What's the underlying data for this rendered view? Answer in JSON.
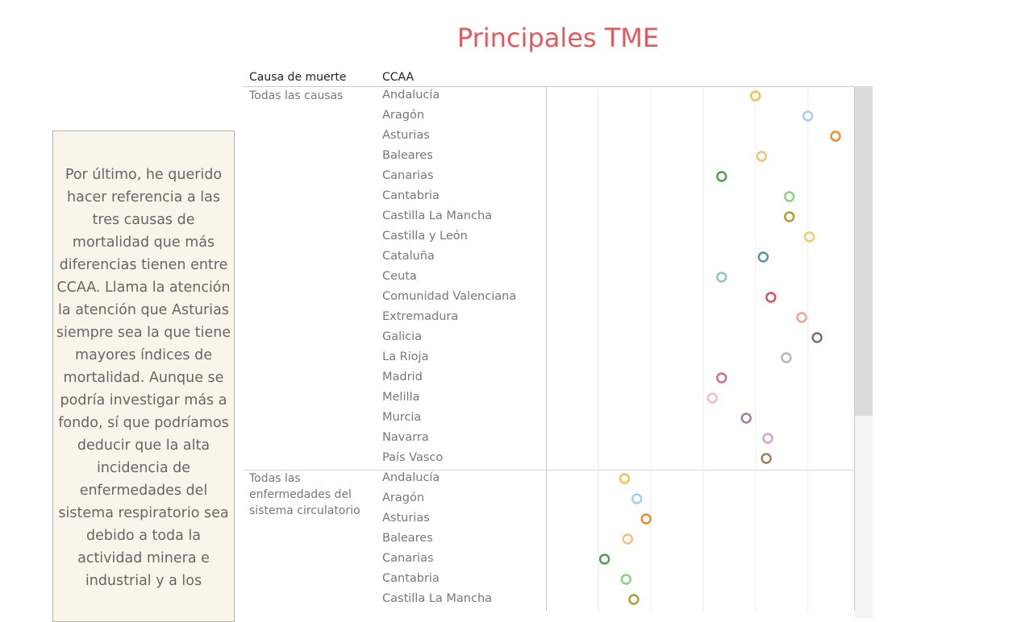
{
  "title": "Principales TME",
  "story_text": "Por último, he querido hacer referencia a las tres causas de mortalidad que más diferencias tienen entre CCAA. Llama la atención la atención que Asturias siempre sea la que tiene mayores índices de mortalidad. Aunque se podría investigar más a fondo, sí que podríamos deducir que la alta incidencia de enfermedades del sistema respiratorio sea debido a toda la actividad minera e industrial y a los",
  "headers": {
    "cause": "Causa de muerte",
    "ccaa": "CCAA"
  },
  "colors": {
    "Andalucía": "#f0c24e",
    "Aragón": "#a3cfec",
    "Asturias": "#f0892e",
    "Baleares": "#f5be7a",
    "Canarias": "#4e9f4a",
    "Cantabria": "#8ccf7e",
    "Castilla La Mancha": "#b19a30",
    "Castilla y León": "#f2cf5e",
    "Cataluña": "#4f9a98",
    "Ceuta": "#8fc4c0",
    "Comunidad Valenciana": "#dd4d54",
    "Extremadura": "#f3a09b",
    "Galicia": "#7a706a",
    "La Rioja": "#bbb3b1",
    "Madrid": "#d5678d",
    "Melilla": "#f5b7cd",
    "Murcia": "#a679a0",
    "Navarra": "#d6a3c6",
    "País Vasco": "#9c7a5e"
  },
  "chart_data": {
    "type": "scatter",
    "title": "Principales TME",
    "columns": [
      "Causa de muerte",
      "CCAA"
    ],
    "xlim": [
      0,
      100
    ],
    "grid": true,
    "legend": "none",
    "sections": [
      {
        "cause": "Todas las causas",
        "points": [
          {
            "ccaa": "Andalucía",
            "x": 68.0
          },
          {
            "ccaa": "Aragón",
            "x": 85.0
          },
          {
            "ccaa": "Asturias",
            "x": 94.0
          },
          {
            "ccaa": "Baleares",
            "x": 70.0
          },
          {
            "ccaa": "Canarias",
            "x": 57.0
          },
          {
            "ccaa": "Cantabria",
            "x": 79.0
          },
          {
            "ccaa": "Castilla La Mancha",
            "x": 79.0
          },
          {
            "ccaa": "Castilla y León",
            "x": 85.5
          },
          {
            "ccaa": "Cataluña",
            "x": 70.5
          },
          {
            "ccaa": "Ceuta",
            "x": 57.0
          },
          {
            "ccaa": "Comunidad Valenciana",
            "x": 73.0
          },
          {
            "ccaa": "Extremadura",
            "x": 83.0
          },
          {
            "ccaa": "Galicia",
            "x": 88.0
          },
          {
            "ccaa": "La Rioja",
            "x": 78.0
          },
          {
            "ccaa": "Madrid",
            "x": 57.0
          },
          {
            "ccaa": "Melilla",
            "x": 54.0
          },
          {
            "ccaa": "Murcia",
            "x": 65.0
          },
          {
            "ccaa": "Navarra",
            "x": 72.0
          },
          {
            "ccaa": "País Vasco",
            "x": 71.5
          }
        ]
      },
      {
        "cause": "Todas las enfermedades del sistema circulatorio",
        "points": [
          {
            "ccaa": "Andalucía",
            "x": 25.5
          },
          {
            "ccaa": "Aragón",
            "x": 29.5
          },
          {
            "ccaa": "Asturias",
            "x": 32.5
          },
          {
            "ccaa": "Baleares",
            "x": 26.5
          },
          {
            "ccaa": "Canarias",
            "x": 19.0
          },
          {
            "ccaa": "Cantabria",
            "x": 26.0
          },
          {
            "ccaa": "Castilla La Mancha",
            "x": 28.5
          }
        ]
      }
    ]
  }
}
